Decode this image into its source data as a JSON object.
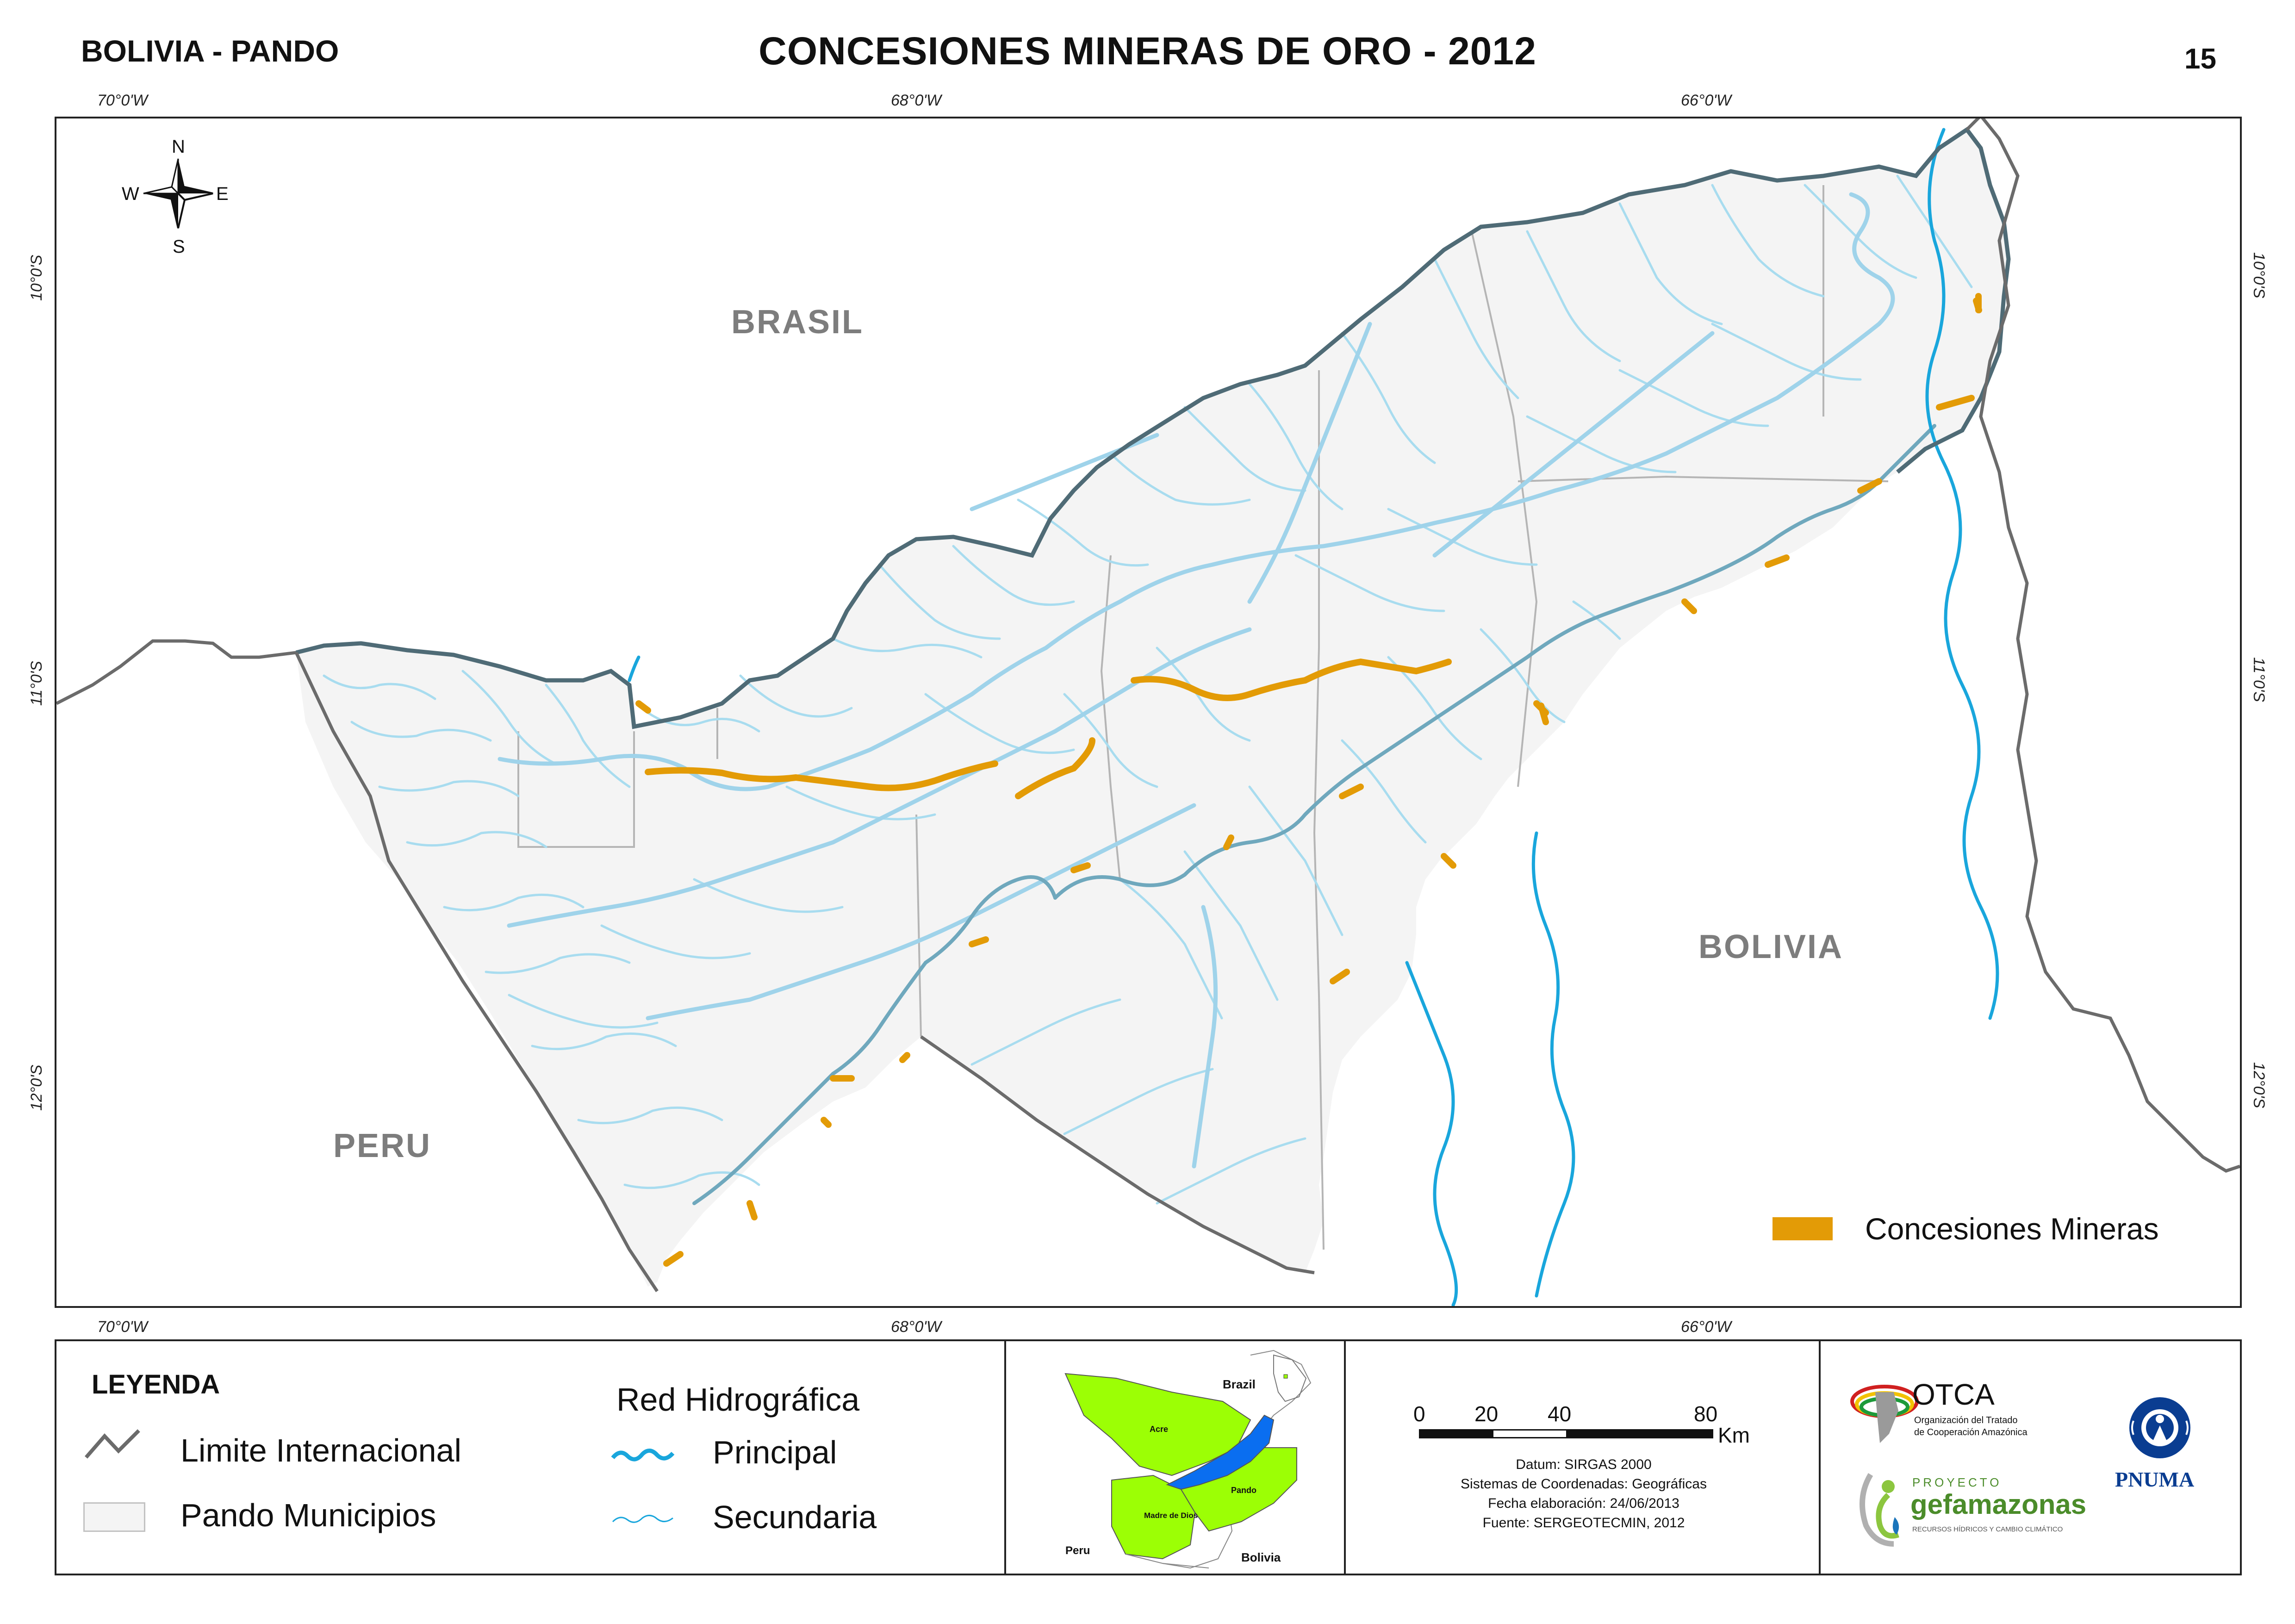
{
  "header": {
    "region": "BOLIVIA - PANDO",
    "title": "CONCESIONES MINERAS DE ORO -  2012",
    "page_number": "15"
  },
  "graticule": {
    "longitudes": [
      "70°0'W",
      "68°0'W",
      "66°0'W"
    ],
    "latitudes": [
      "10°0'S",
      "11°0'S",
      "12°0'S"
    ]
  },
  "map": {
    "country_labels": {
      "brasil": "BRASIL",
      "peru": "PERU",
      "bolivia": "BOLIVIA"
    },
    "compass": {
      "n": "N",
      "s": "S",
      "e": "E",
      "w": "W"
    },
    "legend_inset": {
      "label": "Concesiones Mineras"
    },
    "colors": {
      "concession": "#e39b06",
      "pando_fill": "#f4f4f4",
      "river_principal": "#19a6dc",
      "river_secondary": "#a8dcef",
      "river_main_pando": "#6fa8bd",
      "international_limit": "#6b6b6b",
      "border_brazil": "#4f6b76",
      "municipal_limit": "#b5b5b5"
    }
  },
  "legend": {
    "title": "LEYENDA",
    "international_limit": "Limite Internacional",
    "municipios": "Pando Municipios",
    "hydro_title": "Red Hidrográfica",
    "principal": "Principal",
    "secundaria": "Secundaria"
  },
  "locator": {
    "brazil": "Brazil",
    "acre": "Acre",
    "madre_de_dios": "Madre de Dios",
    "pando": "Pando",
    "peru": "Peru",
    "bolivia": "Bolivia",
    "colors": {
      "region": "#9cff05",
      "pando": "#0a6ef0"
    }
  },
  "scale": {
    "ticks": [
      "0",
      "20",
      "40",
      "80"
    ],
    "unit": "Km",
    "datum": "Datum: SIRGAS 2000",
    "coord_system": "Sistemas de Coordenadas: Geográficas",
    "date": "Fecha elaboración: 24/06/2013",
    "source": "Fuente: SERGEOTECMIN, 2012"
  },
  "logos": {
    "otca_name": "OTCA",
    "otca_sub1": "Organización del Tratado",
    "otca_sub2": "de Cooperación Amazónica",
    "proyecto": "PROYECTO",
    "gef": "gefamazonas",
    "gef_sub": "RECURSOS HÍDRICOS Y CAMBIO CLIMÁTICO",
    "pnuma": "PNUMA"
  }
}
